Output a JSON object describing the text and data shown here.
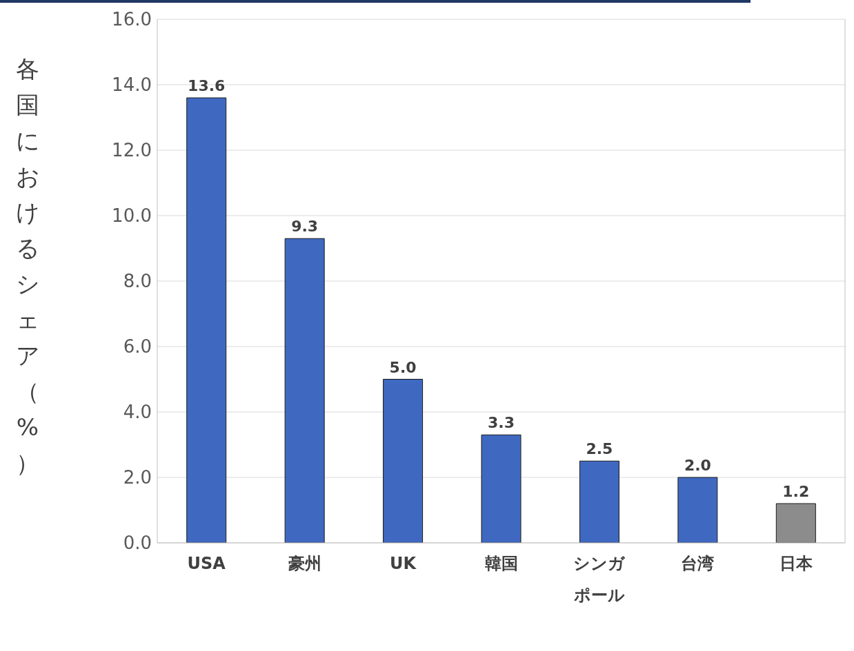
{
  "chart_data": {
    "type": "bar",
    "ylabel": "各国におけるシェア（%）",
    "categories": [
      "USA",
      "豪州",
      "UK",
      "韓国",
      "シンガポール",
      "台湾",
      "日本"
    ],
    "values": [
      13.6,
      9.3,
      5.0,
      3.3,
      2.5,
      2.0,
      1.2
    ],
    "value_labels": [
      "13.6",
      "9.3",
      "5.0",
      "3.3",
      "2.5",
      "2.0",
      "1.2"
    ],
    "colors": [
      "#3f68c0",
      "#3f68c0",
      "#3f68c0",
      "#3f68c0",
      "#3f68c0",
      "#3f68c0",
      "#8c8c8c"
    ],
    "ylim": [
      0,
      16
    ],
    "yticks": [
      {
        "value": 0,
        "label": "0.0"
      },
      {
        "value": 2,
        "label": "2.0"
      },
      {
        "value": 4,
        "label": "4.0"
      },
      {
        "value": 6,
        "label": "6.0"
      },
      {
        "value": 8,
        "label": "8.0"
      },
      {
        "value": 10,
        "label": "10.0"
      },
      {
        "value": 12,
        "label": "12.0"
      },
      {
        "value": 14,
        "label": "14.0"
      },
      {
        "value": 16,
        "label": "16.0"
      }
    ],
    "grid": "y"
  }
}
